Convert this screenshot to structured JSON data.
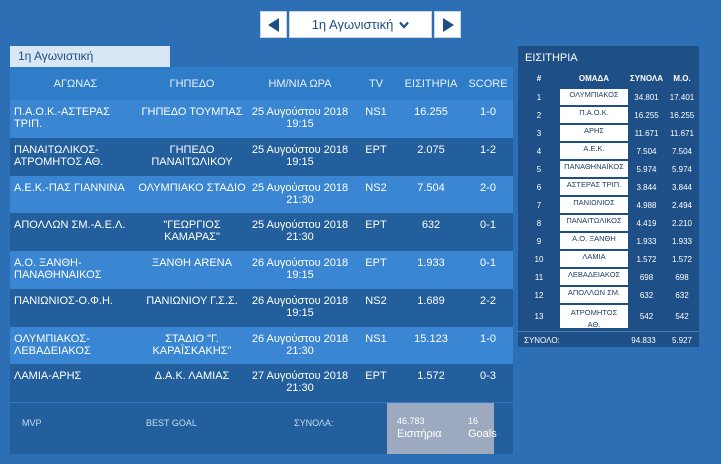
{
  "round_nav": {
    "selected": "1η Αγωνιστική"
  },
  "round_tab": "1η Αγωνιστική",
  "matches": {
    "headers": [
      "ΑΓΩΝΑΣ",
      "ΓΗΠΕΔΟ",
      "ΗΜ/ΝΙΑ ΩΡΑ",
      "TV",
      "ΕΙΣΙΤΗΡΙΑ",
      "SCORE"
    ],
    "rows": [
      {
        "match": [
          "Π.Α.Ο.Κ.-ΑΣΤΕΡΑΣ ΤΡΙΠ."
        ],
        "stadium": [
          "ΓΗΠΕΔΟ ΤΟΥΜΠΑΣ"
        ],
        "date": "25 Αυγούστου 2018",
        "time": "19:15",
        "tv": "NS1",
        "tickets": "16.255",
        "score": "1-0"
      },
      {
        "match": [
          "ΠΑΝΑΙΤΩΛΙΚΟΣ-",
          "ΑΤΡΟΜΗΤΟΣ ΑΘ."
        ],
        "stadium": [
          "ΓΗΠΕΔΟ",
          "ΠΑΝΑΙΤΩΛΙΚΟΥ"
        ],
        "date": "25 Αυγούστου 2018",
        "time": "19:15",
        "tv": "ΕΡΤ",
        "tickets": "2.075",
        "score": "1-2"
      },
      {
        "match": [
          "Α.Ε.Κ.-ΠΑΣ ΓΙΑΝΝΙΝΑ"
        ],
        "stadium": [
          "ΟΛΥΜΠΙΑΚΟ ΣΤΑΔΙΟ"
        ],
        "date": "25 Αυγούστου 2018",
        "time": "21:30",
        "tv": "NS2",
        "tickets": "7.504",
        "score": "2-0"
      },
      {
        "match": [
          "ΑΠΟΛΛΩΝ ΣΜ.-Α.Ε.Λ."
        ],
        "stadium": [
          "\"ΓΕΩΡΓΙΟΣ",
          "ΚΑΜΑΡΑΣ\""
        ],
        "date": "25 Αυγούστου 2018",
        "time": "21:30",
        "tv": "ΕΡΤ",
        "tickets": "632",
        "score": "0-1"
      },
      {
        "match": [
          "Α.Ο. ΞΑΝΘΗ-",
          "ΠΑΝΑΘΗΝΑΙΚΟΣ"
        ],
        "stadium": [
          "ΞΑΝΘΗ ARENA"
        ],
        "date": "26 Αυγούστου 2018",
        "time": "19:15",
        "tv": "ΕΡΤ",
        "tickets": "1.933",
        "score": "0-1"
      },
      {
        "match": [
          "ΠΑΝΙΩΝΙΟΣ-Ο.Φ.Η."
        ],
        "stadium": [
          "ΠΑΝΙΩΝΙΟΥ Γ.Σ.Σ."
        ],
        "date": "26 Αυγούστου 2018",
        "time": "19:15",
        "tv": "NS2",
        "tickets": "1.689",
        "score": "2-2"
      },
      {
        "match": [
          "ΟΛΥΜΠΙΑΚΟΣ-",
          "ΛΕΒΑΔΕΙΑΚΟΣ"
        ],
        "stadium": [
          "ΣΤΑΔΙΟ \"Γ.",
          "ΚΑΡΑΪΣΚΑΚΗΣ\""
        ],
        "date": "26 Αυγούστου 2018",
        "time": "21:30",
        "tv": "NS1",
        "tickets": "15.123",
        "score": "1-0"
      },
      {
        "match": [
          "ΛΑΜΙΑ-ΑΡΗΣ"
        ],
        "stadium": [
          "Δ.Α.Κ. ΛΑΜΙΑΣ"
        ],
        "date": "27 Αυγούστου 2018",
        "time": "21:30",
        "tv": "ΕΡΤ",
        "tickets": "1.572",
        "score": "0-3"
      }
    ]
  },
  "summary": {
    "mvp_label": "MVP",
    "best_goal_label": "BEST GOAL",
    "totals_label": "ΣΥΝΟΛΑ:",
    "tickets_total": "46.783",
    "tickets_label": "Εισιτήρια",
    "goals_total": "16",
    "goals_label": "Goals"
  },
  "tickets": {
    "title": "ΕΙΣΙΤΗΡΙΑ",
    "headers": [
      "#",
      "ΟΜΑΔΑ",
      "ΣΥΝΟΛΑ",
      "Μ.Ο."
    ],
    "rows": [
      {
        "rank": "1",
        "team": [
          "ΟΛΥΜΠΙΑΚΟΣ"
        ],
        "total": "34.801",
        "avg": "17.401"
      },
      {
        "rank": "2",
        "team": [
          "Π.Α.Ο.Κ."
        ],
        "total": "16.255",
        "avg": "16.255"
      },
      {
        "rank": "3",
        "team": [
          "ΑΡΗΣ"
        ],
        "total": "11.671",
        "avg": "11.671"
      },
      {
        "rank": "4",
        "team": [
          "Α.Ε.Κ."
        ],
        "total": "7.504",
        "avg": "7.504"
      },
      {
        "rank": "5",
        "team": [
          "ΠΑΝΑΘΗΝΑΪΚΟΣ"
        ],
        "total": "5.974",
        "avg": "5.974"
      },
      {
        "rank": "6",
        "team": [
          "ΑΣΤΕΡΑΣ ΤΡΙΠ."
        ],
        "total": "3.844",
        "avg": "3.844"
      },
      {
        "rank": "7",
        "team": [
          "ΠΑΝΙΩΝΙΟΣ"
        ],
        "total": "4.988",
        "avg": "2.494"
      },
      {
        "rank": "8",
        "team": [
          "ΠΑΝΑΙΤΩΛΙΚΟΣ"
        ],
        "total": "4.419",
        "avg": "2.210"
      },
      {
        "rank": "9",
        "team": [
          "Α.Ο. ΞΑΝΘΗ"
        ],
        "total": "1.933",
        "avg": "1.933"
      },
      {
        "rank": "10",
        "team": [
          "ΛΑΜΙΑ"
        ],
        "total": "1.572",
        "avg": "1.572"
      },
      {
        "rank": "11",
        "team": [
          "ΛΕΒΑΔΕΙΑΚΟΣ"
        ],
        "total": "698",
        "avg": "698"
      },
      {
        "rank": "12",
        "team": [
          "ΑΠΟΛΛΩΝ ΣΜ."
        ],
        "total": "632",
        "avg": "632"
      },
      {
        "rank": "13",
        "team": [
          "ΑΤΡΟΜΗΤΟΣ",
          "ΑΘ."
        ],
        "total": "542",
        "avg": "542"
      }
    ],
    "total_label": "ΣΥΝΟΛΟ:",
    "total_sum": "94.833",
    "total_avg": "5.927"
  }
}
